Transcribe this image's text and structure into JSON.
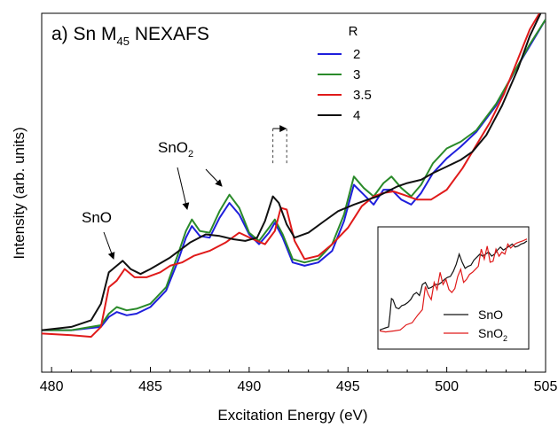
{
  "chart_data": {
    "type": "line",
    "title_main": "a) Sn M",
    "title_sub": "45",
    "title_rest": " NEXAFS",
    "xlabel": "Excitation Energy (eV)",
    "ylabel": "Intensity (arb. units)",
    "xlim": [
      479.5,
      505
    ],
    "ylim": [
      0,
      1
    ],
    "xticks": [
      480,
      485,
      490,
      495,
      500,
      505
    ],
    "yticks_shown": false,
    "grid": false,
    "legend": {
      "title": "R",
      "placement": "top-center"
    },
    "colors": {
      "R2": "#1f1fdc",
      "R3": "#2a8a2a",
      "R35": "#e01a1a",
      "R4": "#111111"
    },
    "series": [
      {
        "name": "2",
        "color": "#1f1fdc",
        "x": [
          479.5,
          481,
          482.5,
          482.9,
          483.3,
          483.8,
          484.3,
          485,
          485.8,
          486.4,
          486.8,
          487.1,
          487.5,
          488.0,
          488.5,
          489.0,
          489.5,
          490.0,
          490.5,
          491.0,
          491.3,
          491.7,
          492.2,
          492.8,
          493.5,
          494.2,
          494.8,
          495.3,
          495.8,
          496.3,
          496.8,
          497.2,
          497.7,
          498.2,
          498.7,
          499.3,
          500.0,
          500.7,
          501.5,
          502.5,
          503.5,
          504.2,
          505.0
        ],
        "y": [
          0.06,
          0.06,
          0.07,
          0.1,
          0.115,
          0.105,
          0.11,
          0.13,
          0.18,
          0.27,
          0.34,
          0.375,
          0.345,
          0.34,
          0.4,
          0.445,
          0.41,
          0.35,
          0.32,
          0.355,
          0.385,
          0.34,
          0.265,
          0.255,
          0.265,
          0.3,
          0.39,
          0.5,
          0.47,
          0.44,
          0.485,
          0.485,
          0.455,
          0.44,
          0.475,
          0.535,
          0.58,
          0.615,
          0.66,
          0.74,
          0.85,
          0.92,
          1.0
        ]
      },
      {
        "name": "3",
        "color": "#2a8a2a",
        "x": [
          479.5,
          481,
          482.5,
          482.9,
          483.3,
          483.8,
          484.3,
          485,
          485.8,
          486.4,
          486.8,
          487.1,
          487.5,
          488.0,
          488.5,
          489.0,
          489.5,
          490.0,
          490.5,
          491.0,
          491.3,
          491.7,
          492.2,
          492.8,
          493.5,
          494.2,
          494.8,
          495.3,
          495.8,
          496.3,
          496.8,
          497.2,
          497.7,
          498.2,
          498.7,
          499.3,
          500.0,
          500.7,
          501.5,
          502.5,
          503.5,
          504.2,
          505.0
        ],
        "y": [
          0.06,
          0.06,
          0.075,
          0.11,
          0.13,
          0.12,
          0.125,
          0.14,
          0.19,
          0.29,
          0.36,
          0.395,
          0.36,
          0.355,
          0.42,
          0.47,
          0.43,
          0.355,
          0.33,
          0.37,
          0.395,
          0.35,
          0.275,
          0.265,
          0.275,
          0.32,
          0.41,
          0.525,
          0.49,
          0.465,
          0.505,
          0.525,
          0.49,
          0.465,
          0.5,
          0.565,
          0.61,
          0.63,
          0.665,
          0.745,
          0.85,
          0.925,
          1.0
        ]
      },
      {
        "name": "3.5",
        "color": "#e01a1a",
        "x": [
          479.5,
          481,
          482.0,
          482.5,
          482.9,
          483.3,
          483.7,
          484.2,
          484.8,
          485.5,
          486.0,
          486.6,
          487.2,
          488.0,
          488.8,
          489.5,
          490.2,
          490.8,
          491.3,
          491.6,
          491.9,
          492.3,
          492.8,
          493.5,
          494.2,
          495.0,
          495.7,
          496.3,
          496.8,
          497.3,
          497.8,
          498.5,
          499.2,
          500.0,
          500.8,
          501.5,
          502.2,
          502.9,
          503.6,
          504.2,
          505.0
        ],
        "y": [
          0.05,
          0.045,
          0.04,
          0.07,
          0.19,
          0.21,
          0.245,
          0.22,
          0.22,
          0.235,
          0.255,
          0.265,
          0.285,
          0.3,
          0.325,
          0.355,
          0.335,
          0.32,
          0.36,
          0.43,
          0.425,
          0.33,
          0.275,
          0.285,
          0.32,
          0.37,
          0.435,
          0.465,
          0.475,
          0.48,
          0.47,
          0.455,
          0.455,
          0.485,
          0.55,
          0.62,
          0.69,
          0.775,
          0.88,
          0.97,
          1.05
        ]
      },
      {
        "name": "4",
        "color": "#111111",
        "x": [
          479.5,
          481,
          482.0,
          482.5,
          482.9,
          483.3,
          483.6,
          484.0,
          484.5,
          485.0,
          486.0,
          487.0,
          487.8,
          488.5,
          489.2,
          489.8,
          490.4,
          490.8,
          491.2,
          491.5,
          491.9,
          492.3,
          493.0,
          493.8,
          494.5,
          495.3,
          496.0,
          496.5,
          497.0,
          497.5,
          498.0,
          498.7,
          499.3,
          500.0,
          500.7,
          501.3,
          502.0,
          502.8,
          503.6,
          504.2,
          505.0
        ],
        "y": [
          0.06,
          0.07,
          0.09,
          0.14,
          0.235,
          0.255,
          0.27,
          0.245,
          0.23,
          0.245,
          0.28,
          0.325,
          0.35,
          0.345,
          0.335,
          0.33,
          0.34,
          0.39,
          0.465,
          0.445,
          0.38,
          0.34,
          0.355,
          0.39,
          0.42,
          0.44,
          0.455,
          0.465,
          0.48,
          0.495,
          0.505,
          0.515,
          0.535,
          0.555,
          0.575,
          0.6,
          0.65,
          0.74,
          0.85,
          0.95,
          1.05
        ]
      }
    ],
    "annotations": [
      {
        "text": "SnO",
        "points_to": [
          483.3,
          0.27
        ]
      },
      {
        "text_main": "SnO",
        "text_sub": "2",
        "points_to": [
          [
            487.0,
            0.38
          ],
          [
            488.5,
            0.44
          ]
        ]
      }
    ],
    "shift_marker": {
      "from": 491.2,
      "to": 491.9,
      "y": 0.67
    },
    "inset": {
      "placement": "bottom-right",
      "legend": [
        {
          "label_main": "SnO",
          "label_sub": "",
          "color": "#111111"
        },
        {
          "label_main": "SnO",
          "label_sub": "2",
          "color": "#e01a1a"
        }
      ],
      "series": [
        {
          "name": "SnO",
          "color": "#111111",
          "x": [
            0,
            2,
            4,
            6,
            7,
            8,
            9,
            11,
            13,
            15,
            17,
            19,
            21,
            23,
            25,
            27,
            28,
            29,
            31,
            33,
            35,
            37,
            38,
            40,
            42,
            44,
            46,
            48,
            50,
            52,
            54,
            56,
            58,
            60,
            62,
            64,
            66,
            68,
            70,
            72,
            74,
            76,
            78,
            80,
            82,
            84,
            86,
            88,
            90,
            92,
            94,
            96,
            98,
            100
          ],
          "y": [
            0.05,
            0.06,
            0.07,
            0.08,
            0.2,
            0.36,
            0.35,
            0.27,
            0.26,
            0.29,
            0.3,
            0.32,
            0.35,
            0.4,
            0.42,
            0.39,
            0.44,
            0.5,
            0.52,
            0.46,
            0.47,
            0.49,
            0.5,
            0.5,
            0.52,
            0.55,
            0.57,
            0.58,
            0.63,
            0.7,
            0.8,
            0.72,
            0.66,
            0.68,
            0.69,
            0.74,
            0.77,
            0.8,
            0.78,
            0.8,
            0.82,
            0.78,
            0.8,
            0.84,
            0.87,
            0.84,
            0.86,
            0.88,
            0.9,
            0.87,
            0.88,
            0.9,
            0.91,
            0.93
          ]
        },
        {
          "name": "SnO2",
          "color": "#e01a1a",
          "x": [
            0,
            4,
            10,
            14,
            18,
            22,
            26,
            29,
            31,
            33,
            35,
            37,
            39,
            41,
            43,
            45,
            47,
            49,
            51,
            53,
            55,
            57,
            59,
            61,
            63,
            65,
            67,
            69,
            71,
            73,
            75,
            77,
            79,
            81,
            83,
            85,
            87,
            89,
            91,
            93,
            95,
            97,
            100
          ],
          "y": [
            0.04,
            0.03,
            0.04,
            0.05,
            0.1,
            0.12,
            0.2,
            0.25,
            0.48,
            0.4,
            0.35,
            0.52,
            0.45,
            0.62,
            0.5,
            0.55,
            0.45,
            0.42,
            0.46,
            0.58,
            0.65,
            0.52,
            0.55,
            0.6,
            0.62,
            0.65,
            0.68,
            0.85,
            0.75,
            0.88,
            0.72,
            0.73,
            0.85,
            0.78,
            0.82,
            0.8,
            0.9,
            0.86,
            0.89,
            0.91,
            0.92,
            0.93,
            0.95
          ]
        }
      ]
    }
  }
}
